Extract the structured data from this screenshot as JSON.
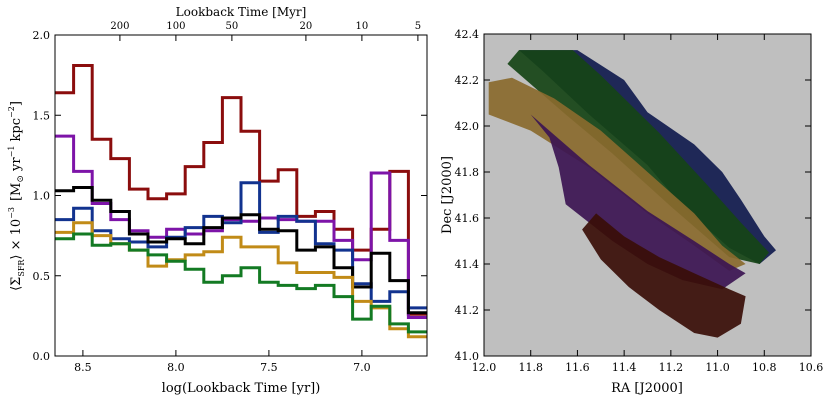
{
  "chart_data": [
    {
      "type": "line",
      "step": true,
      "title": "",
      "xlabel": "log(Lookback Time [yr])",
      "ylabel_parts": {
        "sigma_open": "⟨Σ",
        "sigma_sub": "SFR",
        "sigma_close": "⟩ × 10",
        "exp": "−3",
        "units_open": "[M",
        "sun": "⊙",
        "units_mid": " yr",
        "units_exp1": "−1",
        "units_mid2": " kpc",
        "units_exp2": "−2",
        "units_close": "]"
      },
      "top_axis_label": "Lookback Time [Myr]",
      "xlim": [
        8.65,
        6.65
      ],
      "ylim": [
        0.0,
        2.0
      ],
      "x_ticks": [
        8.5,
        8.0,
        7.5,
        7.0
      ],
      "x_tick_labels": [
        "8.5",
        "8.0",
        "7.5",
        "7.0"
      ],
      "y_ticks": [
        0.0,
        0.5,
        1.0,
        1.5,
        2.0
      ],
      "y_tick_labels": [
        "0.0",
        "0.5",
        "1.0",
        "1.5",
        "2.0"
      ],
      "top_ticks": [
        200,
        100,
        50,
        20,
        10,
        5
      ],
      "top_tick_labels": [
        "200",
        "100",
        "50",
        "20",
        "10",
        "5"
      ],
      "bin_edges": [
        8.65,
        8.55,
        8.45,
        8.35,
        8.25,
        8.15,
        8.05,
        7.95,
        7.85,
        7.75,
        7.65,
        7.55,
        7.45,
        7.35,
        7.25,
        7.15,
        7.05,
        6.95,
        6.85,
        6.75,
        6.65
      ],
      "series": [
        {
          "name": "red",
          "color": "#8b0d0d",
          "values": [
            1.64,
            1.81,
            1.35,
            1.23,
            1.04,
            0.98,
            1.01,
            1.18,
            1.33,
            1.61,
            1.4,
            1.09,
            1.16,
            0.87,
            0.9,
            0.79,
            0.66,
            0.79,
            1.15,
            0.26
          ]
        },
        {
          "name": "purple",
          "color": "#7d14a8",
          "values": [
            1.37,
            1.15,
            0.95,
            0.85,
            0.78,
            0.74,
            0.79,
            0.76,
            0.78,
            0.85,
            0.84,
            0.86,
            0.85,
            0.84,
            0.84,
            0.72,
            0.6,
            1.14,
            0.72,
            0.24
          ]
        },
        {
          "name": "blue",
          "color": "#12338f",
          "values": [
            0.85,
            0.92,
            0.78,
            0.73,
            0.71,
            0.68,
            0.74,
            0.8,
            0.87,
            0.83,
            1.08,
            0.77,
            0.87,
            0.84,
            0.7,
            0.66,
            0.45,
            0.34,
            0.4,
            0.3
          ]
        },
        {
          "name": "black",
          "color": "#000000",
          "values": [
            1.03,
            1.05,
            0.97,
            0.9,
            0.76,
            0.71,
            0.73,
            0.7,
            0.8,
            0.86,
            0.88,
            0.79,
            0.78,
            0.66,
            0.68,
            0.55,
            0.43,
            0.64,
            0.47,
            0.27
          ]
        },
        {
          "name": "gold",
          "color": "#c18b17",
          "values": [
            0.77,
            0.83,
            0.75,
            0.7,
            0.66,
            0.56,
            0.6,
            0.63,
            0.65,
            0.74,
            0.68,
            0.68,
            0.58,
            0.52,
            0.52,
            0.49,
            0.34,
            0.3,
            0.17,
            0.12
          ]
        },
        {
          "name": "green",
          "color": "#137a23",
          "values": [
            0.73,
            0.76,
            0.69,
            0.7,
            0.66,
            0.63,
            0.59,
            0.54,
            0.46,
            0.5,
            0.55,
            0.46,
            0.44,
            0.42,
            0.44,
            0.37,
            0.23,
            0.31,
            0.2,
            0.15
          ]
        }
      ]
    },
    {
      "type": "map",
      "title": "",
      "xlabel": "RA [J2000]",
      "ylabel": "Dec [J2000]",
      "xlim": [
        12.0,
        10.6
      ],
      "ylim": [
        41.0,
        42.4
      ],
      "x_ticks": [
        12.0,
        11.8,
        11.6,
        11.4,
        11.2,
        11.0,
        10.8,
        10.6
      ],
      "x_tick_labels": [
        "12.0",
        "11.8",
        "11.6",
        "11.4",
        "11.2",
        "11.0",
        "10.8",
        "10.6"
      ],
      "y_ticks": [
        41.0,
        41.2,
        41.4,
        41.6,
        41.8,
        42.0,
        42.2,
        42.4
      ],
      "y_tick_labels": [
        "41.0",
        "41.2",
        "41.4",
        "41.6",
        "41.8",
        "42.0",
        "42.2",
        "42.4"
      ],
      "background_color": "#bfbfbf",
      "regions": [
        {
          "name": "navy-region",
          "color": "#111b4e",
          "points": [
            [
              11.85,
              42.33
            ],
            [
              11.6,
              42.33
            ],
            [
              11.4,
              42.2
            ],
            [
              11.3,
              42.06
            ],
            [
              11.1,
              41.92
            ],
            [
              10.98,
              41.8
            ],
            [
              10.9,
              41.68
            ],
            [
              10.8,
              41.52
            ],
            [
              10.75,
              41.46
            ],
            [
              10.82,
              41.4
            ],
            [
              10.95,
              41.47
            ],
            [
              11.15,
              41.65
            ],
            [
              11.3,
              41.83
            ],
            [
              11.55,
              42.05
            ],
            [
              11.75,
              42.24
            ]
          ]
        },
        {
          "name": "green-region",
          "color": "#164416",
          "points": [
            [
              11.85,
              42.33
            ],
            [
              11.62,
              42.33
            ],
            [
              11.5,
              42.22
            ],
            [
              11.25,
              41.97
            ],
            [
              11.05,
              41.75
            ],
            [
              10.9,
              41.58
            ],
            [
              10.78,
              41.45
            ],
            [
              10.82,
              41.4
            ],
            [
              10.95,
              41.43
            ],
            [
              11.2,
              41.65
            ],
            [
              11.45,
              41.88
            ],
            [
              11.65,
              42.05
            ],
            [
              11.9,
              42.27
            ]
          ]
        },
        {
          "name": "tan-region",
          "color": "#8a6a2e",
          "points": [
            [
              11.98,
              42.19
            ],
            [
              11.88,
              42.21
            ],
            [
              11.7,
              42.12
            ],
            [
              11.5,
              41.98
            ],
            [
              11.3,
              41.8
            ],
            [
              11.1,
              41.62
            ],
            [
              10.98,
              41.48
            ],
            [
              10.88,
              41.4
            ],
            [
              10.95,
              41.37
            ],
            [
              11.1,
              41.48
            ],
            [
              11.3,
              41.62
            ],
            [
              11.55,
              41.82
            ],
            [
              11.8,
              41.98
            ],
            [
              11.98,
              42.05
            ]
          ]
        },
        {
          "name": "purple-region",
          "color": "#3c1552",
          "points": [
            [
              11.8,
              42.05
            ],
            [
              11.55,
              41.83
            ],
            [
              11.3,
              41.63
            ],
            [
              11.1,
              41.5
            ],
            [
              10.95,
              41.4
            ],
            [
              10.88,
              41.36
            ],
            [
              10.98,
              41.29
            ],
            [
              11.15,
              41.33
            ],
            [
              11.3,
              41.4
            ],
            [
              11.45,
              41.5
            ],
            [
              11.55,
              41.58
            ],
            [
              11.65,
              41.66
            ],
            [
              11.68,
              41.82
            ],
            [
              11.72,
              41.95
            ]
          ]
        },
        {
          "name": "maroon-region",
          "color": "#3a0e08",
          "points": [
            [
              11.52,
              41.62
            ],
            [
              11.4,
              41.52
            ],
            [
              11.25,
              41.43
            ],
            [
              11.1,
              41.36
            ],
            [
              10.95,
              41.29
            ],
            [
              10.88,
              41.26
            ],
            [
              10.9,
              41.14
            ],
            [
              11.0,
              41.08
            ],
            [
              11.1,
              41.1
            ],
            [
              11.25,
              41.2
            ],
            [
              11.38,
              41.3
            ],
            [
              11.5,
              41.42
            ],
            [
              11.58,
              41.55
            ]
          ]
        }
      ]
    }
  ]
}
